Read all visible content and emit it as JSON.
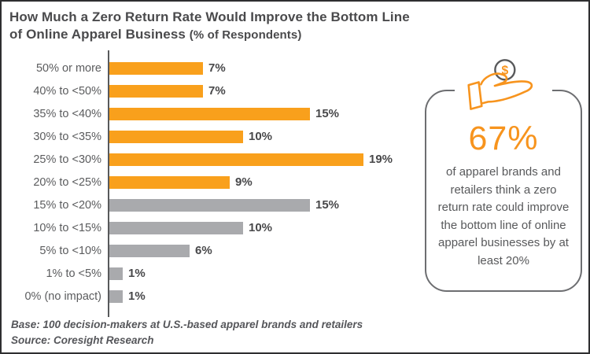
{
  "title": {
    "line1": "How Much a Zero Return Rate Would Improve the Bottom Line",
    "line2_main": "of Online Apparel Business",
    "line2_sub": "(% of Respondents)"
  },
  "chart_data": {
    "type": "bar",
    "orientation": "horizontal",
    "categories": [
      "50% or more",
      "40% to <50%",
      "35% to <40%",
      "30% to <35%",
      "25% to <30%",
      "20% to <25%",
      "15% to <20%",
      "10% to <15%",
      "5% to <10%",
      "1% to <5%",
      "0% (no impact)"
    ],
    "values": [
      7,
      7,
      15,
      10,
      19,
      9,
      15,
      10,
      6,
      1,
      1
    ],
    "value_labels": [
      "7%",
      "7%",
      "15%",
      "10%",
      "19%",
      "9%",
      "15%",
      "10%",
      "6%",
      "1%",
      "1%"
    ],
    "bar_colors": [
      "orange",
      "orange",
      "orange",
      "orange",
      "orange",
      "orange",
      "gray",
      "gray",
      "gray",
      "gray",
      "gray"
    ],
    "colors": {
      "orange": "#f9a01c",
      "gray": "#a9aaad",
      "axis": "#58595b"
    },
    "xlim": [
      0,
      20
    ],
    "grid": false,
    "legend": false,
    "xlabel": "",
    "ylabel": ""
  },
  "callout": {
    "icon": "dollar-in-hand-icon",
    "stat": "67%",
    "text": "of apparel brands and retailers think a zero return rate could improve the bottom line of online apparel businesses by at least 20%",
    "accent_color": "#f7941e",
    "border_color": "#6d6e71"
  },
  "footer": {
    "base": "Base: 100 decision-makers at U.S.-based apparel brands and retailers",
    "source": "Source: Coresight Research"
  }
}
